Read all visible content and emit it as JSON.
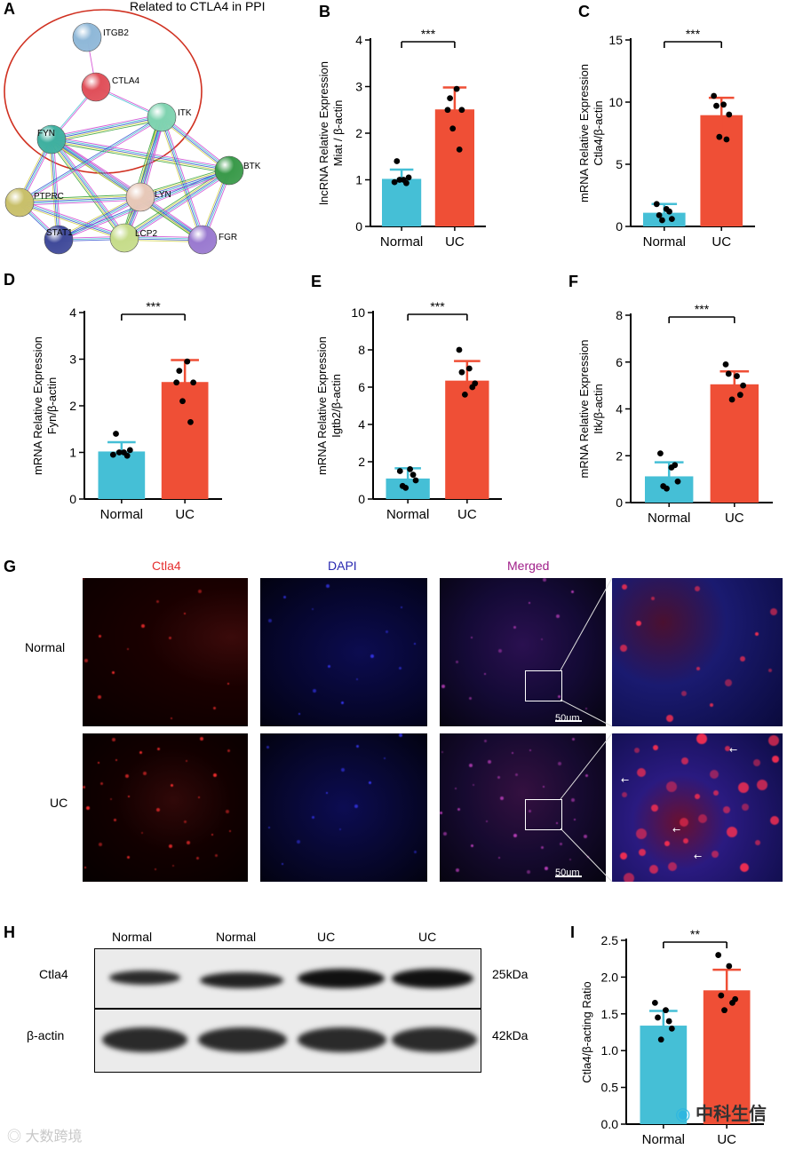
{
  "panels": {
    "A": "A",
    "B": "B",
    "C": "C",
    "D": "D",
    "E": "E",
    "F": "F",
    "G": "G",
    "H": "H",
    "I": "I"
  },
  "ppi": {
    "title": "Related to CTLA4 in PPI",
    "nodes": [
      {
        "name": "ITGB2",
        "color": "#8fb8d8"
      },
      {
        "name": "CTLA4",
        "color": "#e0505a"
      },
      {
        "name": "ITK",
        "color": "#7fd3b0"
      },
      {
        "name": "FYN",
        "color": "#3fb0a0"
      },
      {
        "name": "BTK",
        "color": "#3a9a4a"
      },
      {
        "name": "PTPRC",
        "color": "#c9c06a"
      },
      {
        "name": "LYN",
        "color": "#e7c8b8"
      },
      {
        "name": "STAT1",
        "color": "#404a9a"
      },
      {
        "name": "LCP2",
        "color": "#c6dc8a"
      },
      {
        "name": "FGR",
        "color": "#9a7ad0"
      }
    ],
    "edge_colors": [
      "#d040d0",
      "#40c0d0",
      "#3050d0",
      "#d0d040",
      "#30a030",
      "#202020"
    ],
    "circle_color": "#d03020"
  },
  "chart_data": [
    {
      "panel": "B",
      "type": "bar",
      "categories": [
        "Normal",
        "UC"
      ],
      "values": [
        1.02,
        2.51
      ],
      "errors": [
        0.2,
        0.47
      ],
      "points": [
        [
          0.95,
          1.0,
          1.0,
          1.05,
          0.93,
          1.4
        ],
        [
          2.5,
          2.95,
          2.1,
          2.5,
          1.65,
          2.75
        ]
      ],
      "ylabel": [
        "lncRNA Relative Expression",
        "Miat / β-actin"
      ],
      "ylim": [
        0,
        4
      ],
      "yticks": [
        0,
        1,
        2,
        3,
        4
      ],
      "significance": "***",
      "colors": [
        "#45bfd6",
        "#ef4f36"
      ]
    },
    {
      "panel": "C",
      "type": "bar",
      "categories": [
        "Normal",
        "UC"
      ],
      "values": [
        1.1,
        8.95
      ],
      "errors": [
        0.7,
        1.4
      ],
      "points": [
        [
          1.8,
          1.4,
          0.5,
          0.6,
          1.2,
          0.9
        ],
        [
          10.5,
          9.8,
          7.2,
          9.0,
          7.0,
          9.7
        ]
      ],
      "ylabel": [
        "mRNA Relative Expression",
        "Ctla4/β-actin"
      ],
      "ylim": [
        0,
        15
      ],
      "yticks": [
        0,
        5,
        10,
        15
      ],
      "significance": "***",
      "colors": [
        "#45bfd6",
        "#ef4f36"
      ]
    },
    {
      "panel": "D",
      "type": "bar",
      "categories": [
        "Normal",
        "UC"
      ],
      "values": [
        1.02,
        2.51
      ],
      "errors": [
        0.2,
        0.47
      ],
      "points": [
        [
          0.95,
          1.0,
          1.0,
          1.05,
          0.93,
          1.4
        ],
        [
          2.5,
          2.95,
          2.1,
          2.5,
          1.65,
          2.75
        ]
      ],
      "ylabel": [
        "mRNA Relative Expression",
        "Fyn/β-actin"
      ],
      "ylim": [
        0,
        4
      ],
      "yticks": [
        0,
        1,
        2,
        3,
        4
      ],
      "significance": "***",
      "colors": [
        "#45bfd6",
        "#ef4f36"
      ]
    },
    {
      "panel": "E",
      "type": "bar",
      "categories": [
        "Normal",
        "UC"
      ],
      "values": [
        1.1,
        6.35
      ],
      "errors": [
        0.55,
        1.05
      ],
      "points": [
        [
          1.5,
          1.6,
          0.6,
          1.0,
          1.3,
          0.7
        ],
        [
          8.0,
          7.0,
          5.6,
          6.2,
          6.0,
          6.8
        ]
      ],
      "ylabel": [
        "mRNA Relative Expression",
        "Igtb2/β-actin"
      ],
      "ylim": [
        0,
        10
      ],
      "yticks": [
        0,
        2,
        4,
        6,
        8,
        10
      ],
      "significance": "***",
      "colors": [
        "#45bfd6",
        "#ef4f36"
      ]
    },
    {
      "panel": "F",
      "type": "bar",
      "categories": [
        "Normal",
        "UC"
      ],
      "values": [
        1.12,
        5.05
      ],
      "errors": [
        0.6,
        0.55
      ],
      "points": [
        [
          2.1,
          1.5,
          0.6,
          0.9,
          1.6,
          0.7
        ],
        [
          5.9,
          5.4,
          4.4,
          5.0,
          4.6,
          5.5
        ]
      ],
      "ylabel": [
        "mRNA Relative Expression",
        "Itk/β-actin"
      ],
      "ylim": [
        0,
        8
      ],
      "yticks": [
        0,
        2,
        4,
        6,
        8
      ],
      "significance": "***",
      "colors": [
        "#45bfd6",
        "#ef4f36"
      ]
    },
    {
      "panel": "I",
      "type": "bar",
      "categories": [
        "Normal",
        "UC"
      ],
      "values": [
        1.34,
        1.82
      ],
      "errors": [
        0.2,
        0.28
      ],
      "points": [
        [
          1.65,
          1.55,
          1.15,
          1.3,
          1.4,
          1.45
        ],
        [
          2.3,
          2.15,
          1.55,
          1.7,
          1.65,
          1.75
        ]
      ],
      "ylabel": [
        "Ctla4/β-acting Ratio"
      ],
      "ylim": [
        0,
        2.5
      ],
      "yticks": [
        0.0,
        0.5,
        1.0,
        1.5,
        2.0,
        2.5
      ],
      "significance": "**",
      "colors": [
        "#45bfd6",
        "#ef4f36"
      ]
    }
  ],
  "immunofluorescence": {
    "columns": [
      {
        "label": "Ctla4",
        "color": "#e53030"
      },
      {
        "label": "DAPI",
        "color": "#2828b0"
      },
      {
        "label": "Merged",
        "color": "#a0208a"
      }
    ],
    "rows": [
      "Normal",
      "UC"
    ],
    "scale_bar": "50um"
  },
  "western_blot": {
    "lanes": [
      "Normal",
      "Normal",
      "UC",
      "UC"
    ],
    "proteins": [
      {
        "name": "Ctla4",
        "mw": "25kDa"
      },
      {
        "name": "β-actin",
        "mw": "42kDa"
      }
    ]
  },
  "watermarks": {
    "left": "大数跨境",
    "right": "中科生信"
  }
}
